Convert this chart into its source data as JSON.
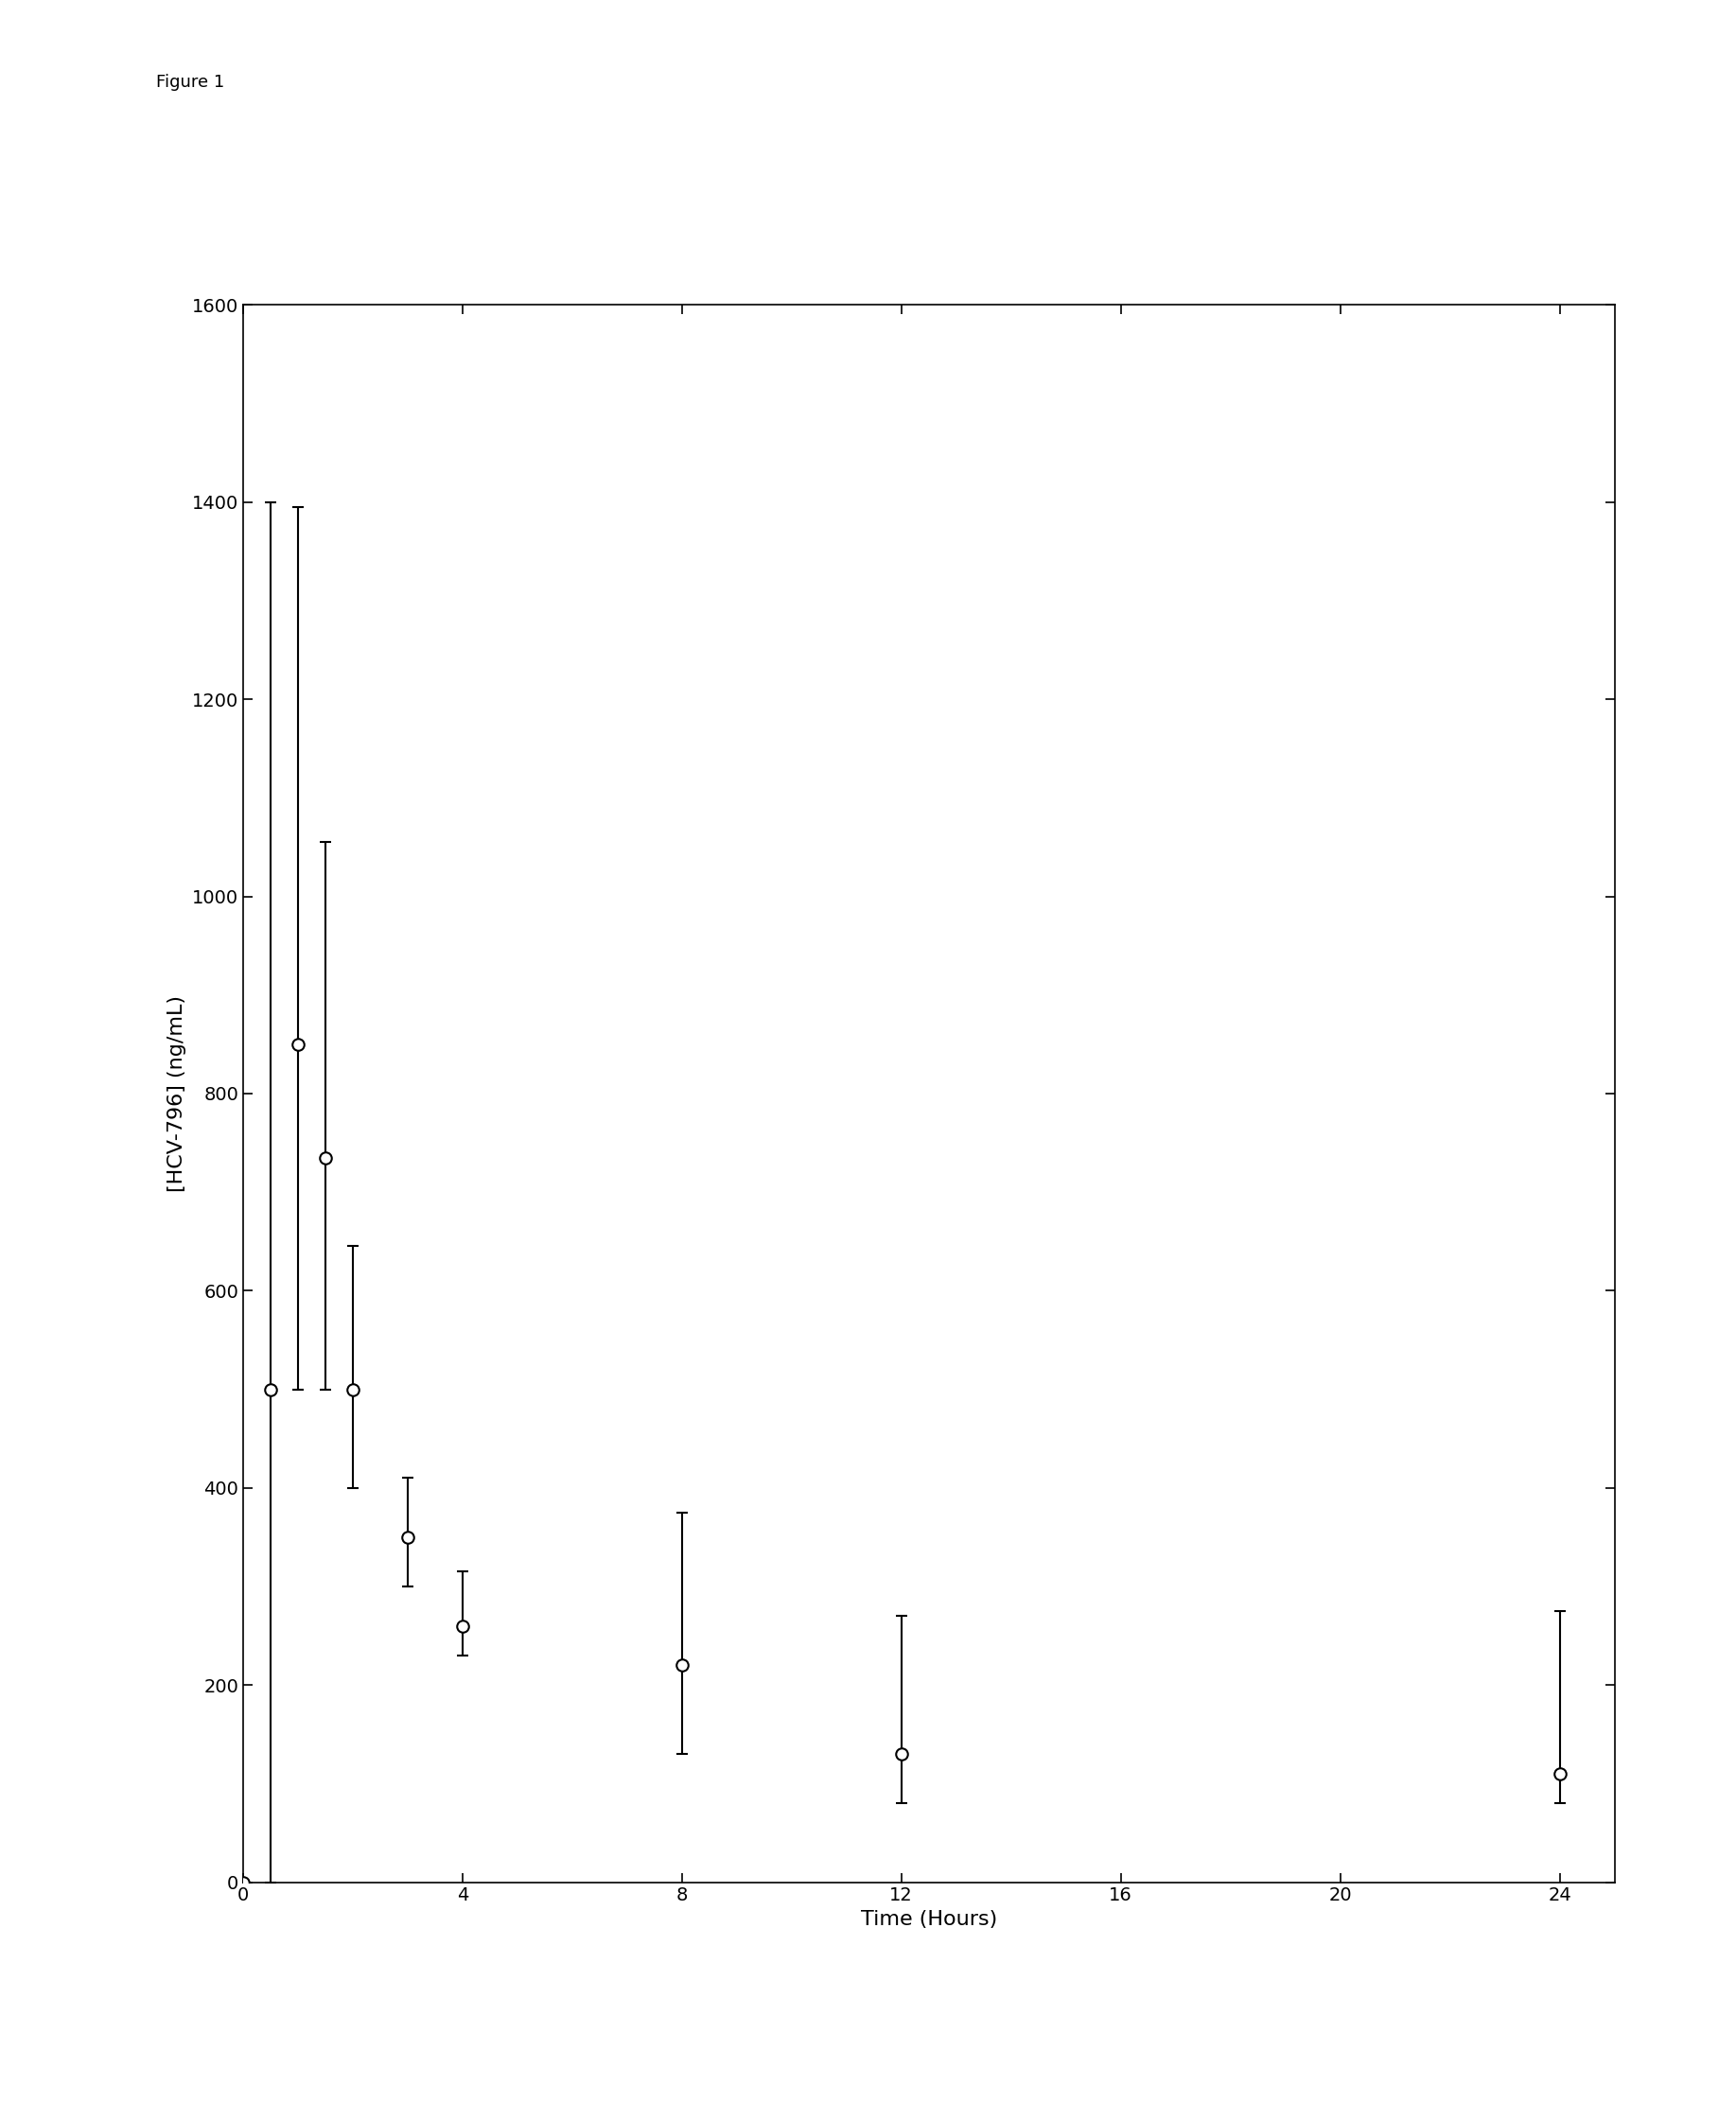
{
  "x": [
    0,
    0.5,
    1.0,
    1.5,
    2.0,
    3.0,
    4.0,
    8.0,
    12.0,
    24.0
  ],
  "y": [
    0,
    500,
    850,
    735,
    500,
    350,
    260,
    220,
    130,
    110
  ],
  "y_err_upper": [
    0,
    900,
    545,
    320,
    145,
    60,
    55,
    155,
    140,
    165
  ],
  "y_err_lower": [
    0,
    500,
    350,
    235,
    100,
    50,
    30,
    90,
    50,
    30
  ],
  "xlabel": "Time (Hours)",
  "ylabel": "[HCV-796] (ng/mL)",
  "figure_label": "Figure 1",
  "xlim": [
    0,
    25
  ],
  "ylim": [
    0,
    1600
  ],
  "yticks": [
    0,
    200,
    400,
    600,
    800,
    1000,
    1200,
    1400,
    1600
  ],
  "xticks": [
    0,
    4,
    8,
    12,
    16,
    20,
    24
  ],
  "line_color": "#000000",
  "marker_facecolor": "#ffffff",
  "marker_edgecolor": "#000000",
  "marker_size": 9,
  "linewidth": 1.5,
  "capsize": 4,
  "background_color": "#ffffff",
  "axis_label_fontsize": 16,
  "tick_fontsize": 14,
  "figure_label_fontsize": 13
}
